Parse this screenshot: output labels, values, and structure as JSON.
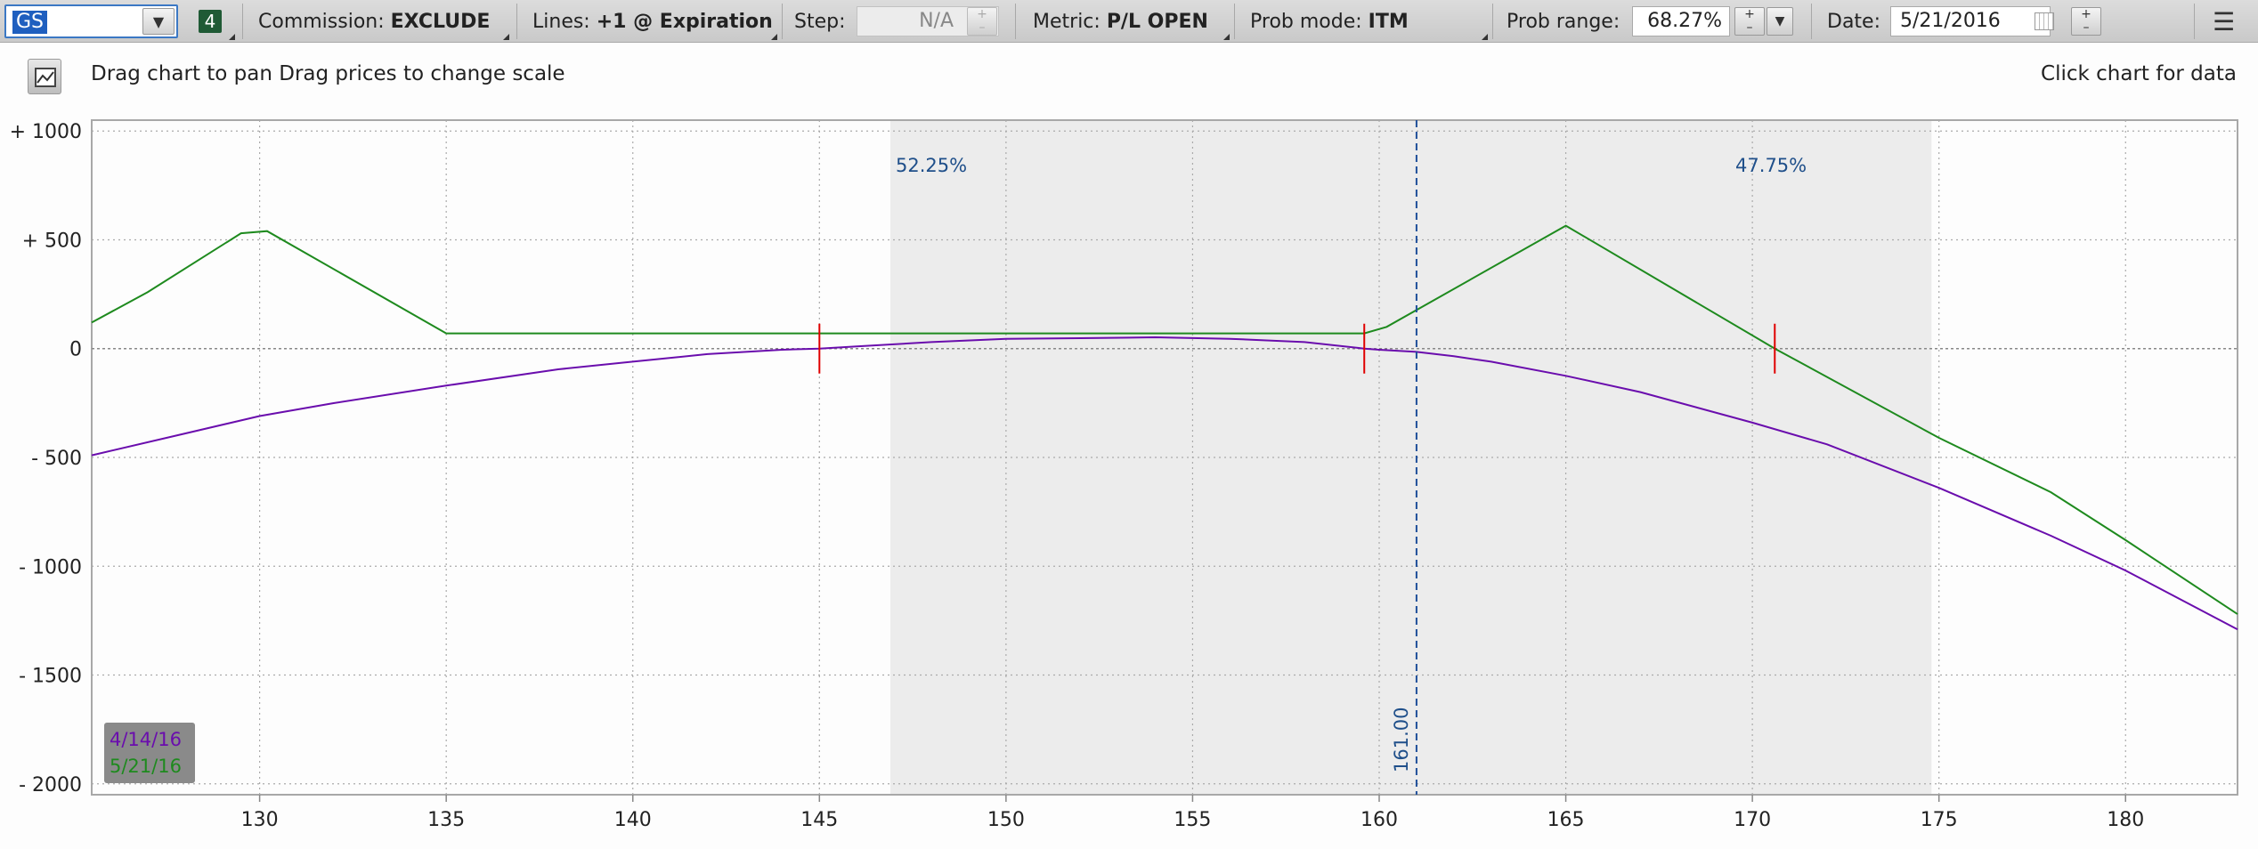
{
  "toolbar": {
    "symbol": "GS",
    "badge": "4",
    "commission_label": "Commission:",
    "commission_value": "EXCLUDE",
    "lines_label": "Lines:",
    "lines_value": "+1 @ Expiration",
    "step_label": "Step:",
    "step_value": "N/A",
    "metric_label": "Metric:",
    "metric_value": "P/L OPEN",
    "probmode_label": "Prob mode:",
    "probmode_value": "ITM",
    "probrange_label": "Prob range:",
    "probrange_value": "68.27%",
    "date_label": "Date:",
    "date_value": "5/21/2016",
    "icons": [
      "dropdown-arrow-icon",
      "plus-icon",
      "minus-icon",
      "calendar-icon",
      "menu-icon",
      "chart-icon"
    ]
  },
  "info": {
    "drag_hint": "Drag chart to pan Drag prices to change scale",
    "click_hint": "Click chart for data"
  },
  "chart_data": {
    "type": "line",
    "x_range": [
      125.5,
      183
    ],
    "y_range": [
      -2050,
      1050
    ],
    "x_ticks": [
      130,
      135,
      140,
      145,
      150,
      155,
      160,
      165,
      170,
      175,
      180
    ],
    "y_ticks": [
      {
        "value": 1000,
        "label": "+ 1000"
      },
      {
        "value": 500,
        "label": "+ 500"
      },
      {
        "value": 0,
        "label": "0"
      },
      {
        "value": -500,
        "label": "- 500"
      },
      {
        "value": -1000,
        "label": "- 1000"
      },
      {
        "value": -1500,
        "label": "- 1500"
      },
      {
        "value": -2000,
        "label": "- 2000"
      }
    ],
    "grid": true,
    "prob_range_band": [
      146.9,
      174.8
    ],
    "prob_labels": [
      {
        "x": 148,
        "text": "52.25%"
      },
      {
        "x": 170.5,
        "text": "47.75%"
      }
    ],
    "current_price": {
      "x": 161.0,
      "label": "161.00"
    },
    "breakevens": [
      145.0,
      159.6,
      170.6
    ],
    "series": [
      {
        "name": "4/14/16",
        "color": "#6a0dad",
        "points": [
          [
            125.5,
            -490
          ],
          [
            128,
            -390
          ],
          [
            130,
            -310
          ],
          [
            132,
            -250
          ],
          [
            135,
            -170
          ],
          [
            138,
            -95
          ],
          [
            140,
            -60
          ],
          [
            142,
            -25
          ],
          [
            144,
            -5
          ],
          [
            145,
            0
          ],
          [
            146,
            10
          ],
          [
            148,
            30
          ],
          [
            150,
            45
          ],
          [
            152,
            48
          ],
          [
            154,
            52
          ],
          [
            156,
            45
          ],
          [
            158,
            30
          ],
          [
            159.6,
            0
          ],
          [
            160,
            -5
          ],
          [
            161,
            -15
          ],
          [
            162,
            -35
          ],
          [
            163,
            -60
          ],
          [
            165,
            -125
          ],
          [
            167,
            -200
          ],
          [
            170,
            -340
          ],
          [
            172,
            -440
          ],
          [
            175,
            -640
          ],
          [
            178,
            -860
          ],
          [
            180,
            -1020
          ],
          [
            183,
            -1290
          ]
        ]
      },
      {
        "name": "5/21/16",
        "color": "#1e8a1e",
        "points": [
          [
            125.5,
            120
          ],
          [
            127,
            260
          ],
          [
            129.5,
            530
          ],
          [
            130.2,
            540
          ],
          [
            135,
            70
          ],
          [
            137,
            70
          ],
          [
            155,
            70
          ],
          [
            159.6,
            70
          ],
          [
            160.2,
            100
          ],
          [
            165,
            565
          ],
          [
            170.6,
            0
          ],
          [
            175,
            -410
          ],
          [
            178,
            -660
          ],
          [
            180,
            -880
          ],
          [
            183,
            -1220
          ]
        ]
      }
    ]
  }
}
